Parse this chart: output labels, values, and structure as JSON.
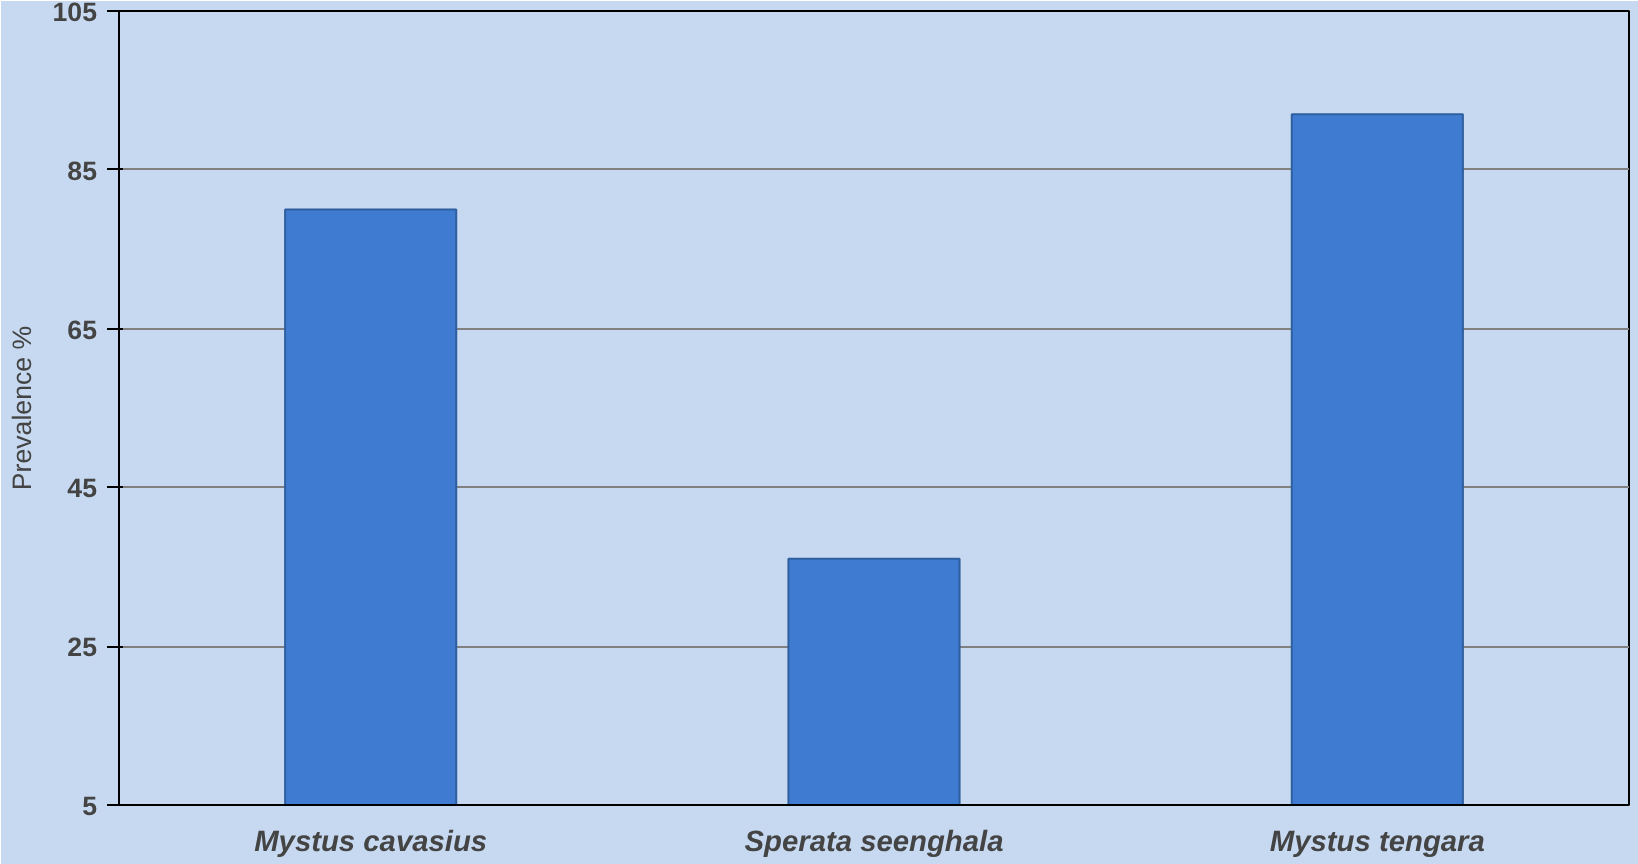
{
  "chart_data": {
    "type": "bar",
    "ylabel": "Prevalence %",
    "categories": [
      "Mystus cavasius",
      "Sperata seenghala",
      "Mystus tengara"
    ],
    "values": [
      80,
      36,
      92
    ],
    "color": "#3f7bd0",
    "ylim": [
      5,
      105
    ],
    "yticks": [
      5,
      25,
      45,
      65,
      85,
      105
    ],
    "grid": "y"
  }
}
